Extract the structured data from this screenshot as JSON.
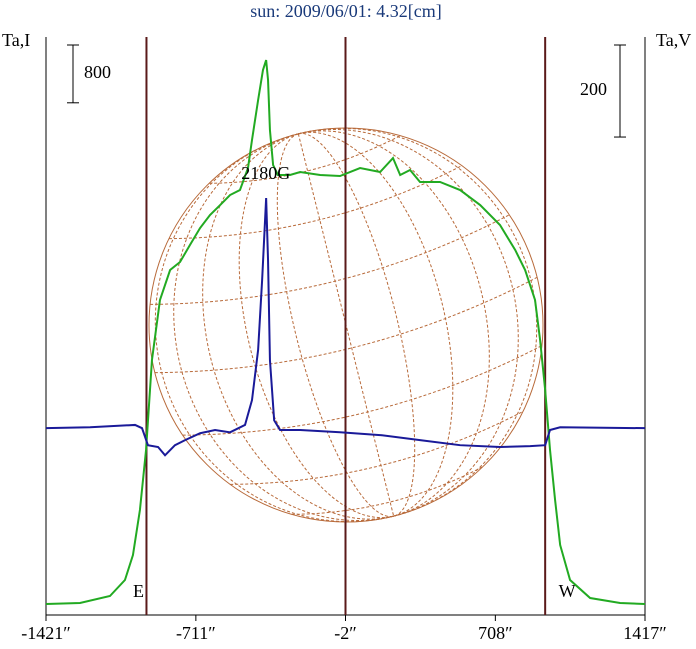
{
  "chart_data": {
    "type": "line",
    "title": "sun: 2009/06/01: 4.32[cm]",
    "y_label": "Ta,I",
    "y2_label": "Ta,V",
    "y_scale_bar": 800,
    "y2_scale_bar": 200,
    "xlim": [
      -1421,
      1417
    ],
    "xticks": [
      {
        "value": -1421,
        "label": "-1421″"
      },
      {
        "value": -711,
        "label": "-711″"
      },
      {
        "value": -2,
        "label": "-2″"
      },
      {
        "value": 708,
        "label": "708″"
      },
      {
        "value": 1417,
        "label": "1417″"
      }
    ],
    "ylim": [
      0,
      8000
    ],
    "y2lim": [
      -406,
      850
    ],
    "markers": [
      {
        "x": -945,
        "label": "E"
      },
      {
        "x": -2
      },
      {
        "x": 944,
        "label": "W"
      }
    ],
    "annotations": [
      {
        "text": "2180G",
        "x": -380,
        "y": 6090
      }
    ],
    "series": [
      {
        "name": "Ta,I",
        "color": "#22aa22",
        "x": [
          -1421,
          -1260,
          -1118,
          -1047,
          -1009,
          -976,
          -947,
          -919,
          -881,
          -833,
          -786,
          -739,
          -691,
          -644,
          -596,
          -549,
          -502,
          -464,
          -445,
          -416,
          -393,
          -378,
          -369,
          -360,
          -345,
          -322,
          -265,
          -217,
          -122,
          -28,
          67,
          162,
          223,
          257,
          304,
          351,
          446,
          541,
          636,
          730,
          802,
          849,
          896,
          920,
          944,
          967,
          991,
          1015,
          1062,
          1157,
          1299,
          1417
        ],
        "values": [
          152,
          166,
          263,
          484,
          830,
          1453,
          2284,
          3529,
          4360,
          4775,
          4886,
          5121,
          5356,
          5536,
          5674,
          5813,
          5882,
          6186,
          6574,
          7128,
          7543,
          7681,
          7404,
          6712,
          6228,
          6090,
          6090,
          6131,
          6090,
          6076,
          6186,
          6131,
          6325,
          6090,
          6159,
          5993,
          5993,
          5882,
          5674,
          5398,
          5052,
          4775,
          4360,
          3806,
          3114,
          2284,
          1592,
          969,
          484,
          235,
          166,
          152
        ]
      },
      {
        "name": "Ta,V",
        "color": "#1a1a99",
        "axis": "y2",
        "x": [
          -1421,
          -1212,
          -999,
          -966,
          -938,
          -890,
          -857,
          -810,
          -762,
          -691,
          -620,
          -549,
          -478,
          -445,
          -416,
          -397,
          -378,
          -369,
          -360,
          -340,
          -312,
          -217,
          -28,
          162,
          351,
          541,
          730,
          873,
          944,
          967,
          1015,
          1417
        ],
        "values": [
          0,
          2,
          7,
          0,
          -37,
          -41,
          -59,
          -37,
          -26,
          -11,
          -4,
          -9,
          7,
          61,
          170,
          322,
          500,
          365,
          148,
          17,
          -4,
          -4,
          -9,
          -15,
          -26,
          -37,
          -41,
          -39,
          -37,
          -4,
          2,
          0
        ]
      }
    ]
  }
}
